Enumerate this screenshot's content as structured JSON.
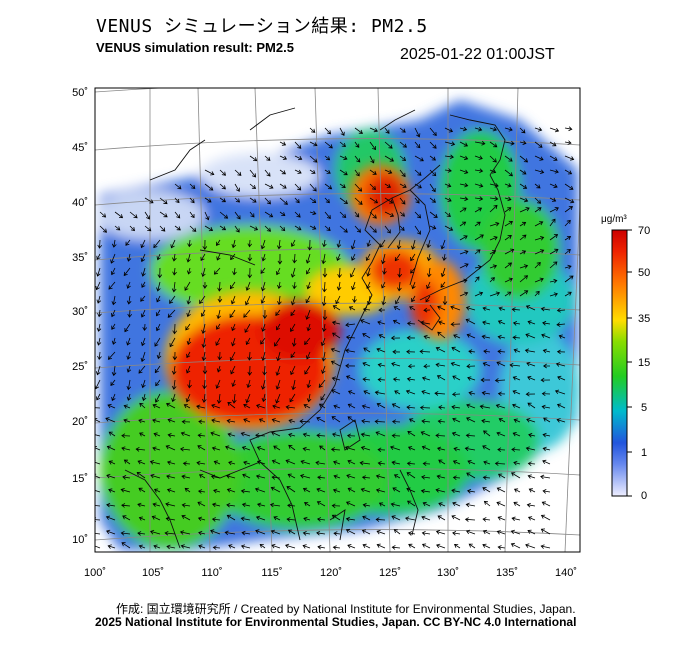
{
  "header": {
    "title_jp": "VENUS シミュレーション結果: PM2.5",
    "title_en": "VENUS simulation result: PM2.5",
    "timestamp": "2025-01-22 01:00JST"
  },
  "map": {
    "lat_labels": [
      "50˚",
      "45˚",
      "40˚",
      "35˚",
      "30˚",
      "25˚",
      "20˚",
      "15˚",
      "10˚"
    ],
    "lon_labels": [
      "100˚",
      "105˚",
      "110˚",
      "115˚",
      "120˚",
      "125˚",
      "130˚",
      "135˚",
      "140˚"
    ],
    "hotspots": [
      {
        "name": "south-china-plume",
        "level": 70
      },
      {
        "name": "yellow-sea-plume",
        "level": 60
      },
      {
        "name": "bohai-plume",
        "level": 60
      },
      {
        "name": "japan-band",
        "level": 55
      }
    ]
  },
  "legend": {
    "unit": "μg/m³",
    "tick_labels": [
      "70",
      "50",
      "35",
      "15",
      "5",
      "1",
      "0"
    ],
    "colors": {
      "c70": "#cc0000",
      "c50": "#ff4400",
      "c35": "#ffbb00",
      "c15": "#22cc22",
      "c5": "#00bbcc",
      "c1": "#2255dd",
      "c0": "#eeeeff"
    }
  },
  "footer": {
    "credit": "作成: 国立環境研究所 / Created by National Institute for Environmental Studies, Japan.",
    "copyright": "2025 National Institute for Environmental Studies, Japan. CC BY-NC 4.0 International"
  }
}
